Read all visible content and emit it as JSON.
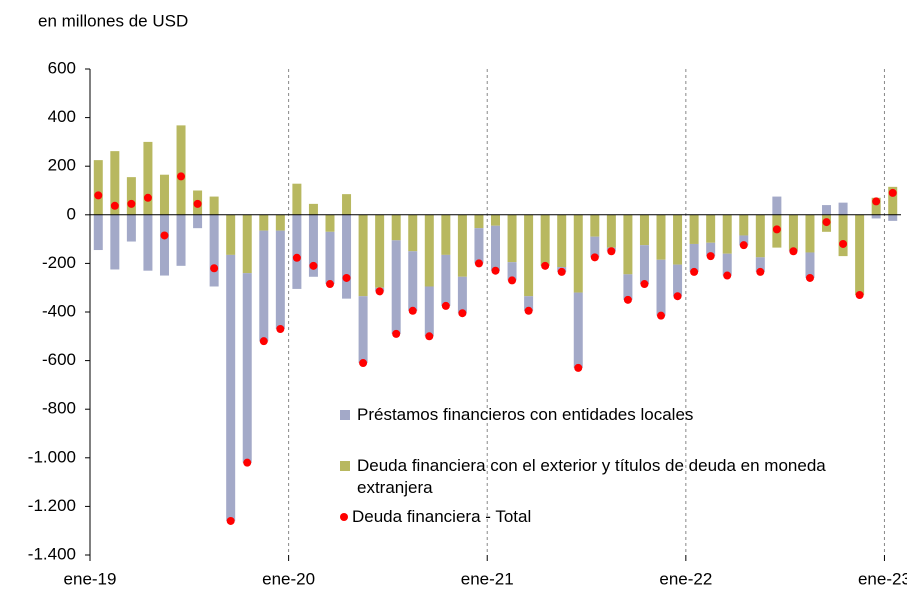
{
  "chart_data": {
    "type": "bar",
    "stacked": true,
    "y_axis_label": "en millones de USD",
    "categories": [
      "ene-19",
      null,
      null,
      null,
      null,
      null,
      null,
      null,
      null,
      null,
      null,
      null,
      "ene-20",
      null,
      null,
      null,
      null,
      null,
      null,
      null,
      null,
      null,
      null,
      null,
      "ene-21",
      null,
      null,
      null,
      null,
      null,
      null,
      null,
      null,
      null,
      null,
      null,
      "ene-22",
      null,
      null,
      null,
      null,
      null,
      null,
      null,
      null,
      null,
      null,
      null,
      "ene-23"
    ],
    "series": [
      {
        "name": "Préstamos financieros con entidades locales",
        "color": "#a3a9c8",
        "kind": "bar",
        "values": [
          -145,
          -225,
          -110,
          -230,
          -250,
          -210,
          -55,
          -295,
          -1095,
          -780,
          -455,
          -405,
          -305,
          -255,
          -215,
          -345,
          -275,
          -15,
          -385,
          -245,
          -205,
          -210,
          -150,
          -145,
          -185,
          -75,
          -60,
          0,
          -20,
          -310,
          -85,
          -15,
          -105,
          -160,
          -230,
          -130,
          -115,
          -55,
          -90,
          -40,
          -60,
          75,
          -5,
          -105,
          40,
          50,
          0,
          -15,
          -25
        ]
      },
      {
        "name": "Deuda financiera con el exterior y títulos de deuda en moneda extranjera",
        "color": "#b8b860",
        "kind": "bar",
        "values": [
          225,
          262,
          155,
          300,
          165,
          368,
          100,
          75,
          -165,
          -240,
          -65,
          -65,
          128,
          45,
          -70,
          85,
          -335,
          -300,
          -105,
          -150,
          -295,
          -165,
          -255,
          -55,
          -45,
          -195,
          -335,
          -210,
          -215,
          -320,
          -90,
          -135,
          -245,
          -125,
          -185,
          -205,
          -120,
          -115,
          -160,
          -85,
          -175,
          -135,
          -145,
          -155,
          -70,
          -170,
          -330,
          70,
          115
        ]
      },
      {
        "name": "Deuda financiera - Total",
        "color": "#ff0000",
        "kind": "dot",
        "values": [
          80,
          37,
          45,
          70,
          -85,
          158,
          45,
          -220,
          -1260,
          -1020,
          -520,
          -470,
          -177,
          -210,
          -285,
          -260,
          -610,
          -315,
          -490,
          -395,
          -500,
          -375,
          -405,
          -200,
          -230,
          -270,
          -395,
          -210,
          -235,
          -630,
          -175,
          -150,
          -350,
          -285,
          -415,
          -335,
          -235,
          -170,
          -250,
          -125,
          -235,
          -60,
          -150,
          -260,
          -30,
          -120,
          -330,
          55,
          90
        ]
      }
    ],
    "ylim": [
      -1400,
      600
    ],
    "yticks": [
      {
        "value": -1400,
        "label": "-1.400"
      },
      {
        "value": -1200,
        "label": "-1.200"
      },
      {
        "value": -1000,
        "label": "-1.000"
      },
      -800,
      -600,
      -400,
      -200,
      0,
      200,
      400,
      600
    ],
    "grid": false
  }
}
